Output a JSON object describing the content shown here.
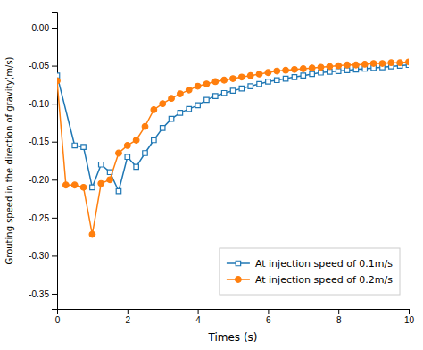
{
  "chart_data": {
    "type": "line",
    "xlabel": "Times (s)",
    "ylabel": "Grouting speed in the direction of gravity(m/s)",
    "xlim": [
      0,
      10
    ],
    "ylim": [
      -0.37,
      0.02
    ],
    "xticks": [
      0,
      2,
      4,
      6,
      8,
      10
    ],
    "yticks": [
      {
        "value": 0.0,
        "label": "0.00"
      },
      -0.05,
      {
        "value": -0.1,
        "label": "-0.10"
      },
      -0.15,
      {
        "value": -0.2,
        "label": "-0.20"
      },
      -0.25,
      {
        "value": -0.3,
        "label": "-0.30"
      },
      -0.35
    ],
    "legend": "lower right",
    "series": [
      {
        "name": "At injection speed of 0.1m/s",
        "marker": "square",
        "x": [
          0.0,
          0.5,
          0.75,
          1.0,
          1.25,
          1.5,
          1.75,
          2.0,
          2.25,
          2.5,
          2.75,
          3.0,
          3.25,
          3.5,
          3.75,
          4.0,
          4.25,
          4.5,
          4.75,
          5.0,
          5.25,
          5.5,
          5.75,
          6.0,
          6.25,
          6.5,
          6.75,
          7.0,
          7.25,
          7.5,
          7.75,
          8.0,
          8.25,
          8.5,
          8.75,
          9.0,
          9.25,
          9.5,
          9.75,
          10.0
        ],
        "values": [
          -0.063,
          -0.155,
          -0.157,
          -0.21,
          -0.18,
          -0.19,
          -0.215,
          -0.17,
          -0.183,
          -0.165,
          -0.148,
          -0.132,
          -0.12,
          -0.112,
          -0.107,
          -0.102,
          -0.095,
          -0.09,
          -0.086,
          -0.083,
          -0.08,
          -0.077,
          -0.074,
          -0.071,
          -0.069,
          -0.067,
          -0.065,
          -0.063,
          -0.061,
          -0.059,
          -0.058,
          -0.057,
          -0.056,
          -0.055,
          -0.054,
          -0.053,
          -0.052,
          -0.051,
          -0.05,
          -0.049
        ]
      },
      {
        "name": "At injection speed of 0.2m/s",
        "marker": "circle",
        "x": [
          0.0,
          0.25,
          0.5,
          0.75,
          1.0,
          1.25,
          1.5,
          1.75,
          2.0,
          2.25,
          2.5,
          2.75,
          3.0,
          3.25,
          3.5,
          3.75,
          4.0,
          4.25,
          4.5,
          4.75,
          5.0,
          5.25,
          5.5,
          5.75,
          6.0,
          6.25,
          6.5,
          6.75,
          7.0,
          7.25,
          7.5,
          7.75,
          8.0,
          8.25,
          8.5,
          8.75,
          9.0,
          9.25,
          9.5,
          9.75,
          10.0
        ],
        "values": [
          -0.07,
          -0.207,
          -0.207,
          -0.21,
          -0.272,
          -0.205,
          -0.2,
          -0.165,
          -0.155,
          -0.148,
          -0.13,
          -0.108,
          -0.1,
          -0.093,
          -0.087,
          -0.082,
          -0.077,
          -0.074,
          -0.071,
          -0.069,
          -0.067,
          -0.065,
          -0.063,
          -0.061,
          -0.059,
          -0.057,
          -0.056,
          -0.055,
          -0.054,
          -0.053,
          -0.052,
          -0.051,
          -0.05,
          -0.049,
          -0.049,
          -0.048,
          -0.047,
          -0.047,
          -0.046,
          -0.046,
          -0.045
        ]
      }
    ]
  }
}
